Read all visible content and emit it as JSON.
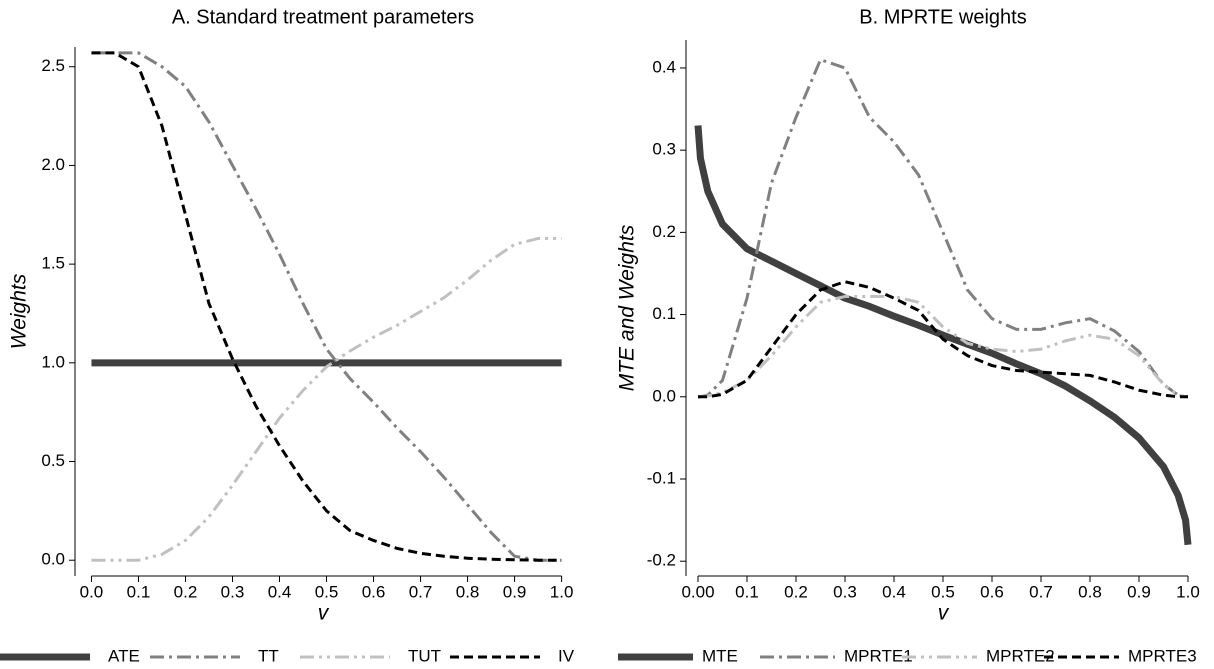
{
  "chart_data": [
    {
      "type": "line",
      "title": "A. Standard treatment parameters",
      "x_label": "v",
      "y_label": "Weights",
      "x": [
        0,
        0.05,
        0.1,
        0.15,
        0.2,
        0.25,
        0.3,
        0.35,
        0.4,
        0.45,
        0.5,
        0.55,
        0.6,
        0.65,
        0.7,
        0.75,
        0.8,
        0.85,
        0.9,
        0.95,
        1
      ],
      "series": [
        {
          "name": "ATE",
          "color": "#404040",
          "style": "solid",
          "values": [
            1,
            1,
            1,
            1,
            1,
            1,
            1,
            1,
            1,
            1,
            1,
            1,
            1,
            1,
            1,
            1,
            1,
            1,
            1,
            1,
            1
          ]
        },
        {
          "name": "TT",
          "color": "#808080",
          "style": "dash-dot",
          "values": [
            2.57,
            2.57,
            2.57,
            2.5,
            2.4,
            2.22,
            2.0,
            1.78,
            1.55,
            1.3,
            1.07,
            0.92,
            0.8,
            0.67,
            0.55,
            0.42,
            0.28,
            0.14,
            0.02,
            0,
            0
          ]
        },
        {
          "name": "TUT",
          "color": "#c0c0c0",
          "style": "dash-dot-dot",
          "values": [
            0,
            0,
            0,
            0.03,
            0.1,
            0.22,
            0.38,
            0.55,
            0.72,
            0.86,
            0.98,
            1.06,
            1.13,
            1.19,
            1.26,
            1.33,
            1.42,
            1.52,
            1.6,
            1.63,
            1.63
          ]
        },
        {
          "name": "IV",
          "color": "#000000",
          "style": "dash",
          "values": [
            2.57,
            2.57,
            2.5,
            2.2,
            1.75,
            1.3,
            1.02,
            0.78,
            0.58,
            0.4,
            0.25,
            0.15,
            0.1,
            0.06,
            0.035,
            0.02,
            0.01,
            0.005,
            0.002,
            0,
            0
          ]
        }
      ],
      "xlim": [
        -0.035,
        1.02
      ],
      "ylim": [
        -0.08,
        2.6
      ],
      "xticks": [
        {
          "value": 0,
          "label": "0.0"
        },
        0.1,
        0.2,
        0.3,
        0.4,
        0.5,
        0.6,
        0.7,
        0.8,
        0.9,
        {
          "value": 1,
          "label": "1.0"
        }
      ],
      "yticks": [
        {
          "value": 0,
          "label": "0.0"
        },
        0.5,
        {
          "value": 1,
          "label": "1.0"
        },
        1.5,
        {
          "value": 2,
          "label": "2.0"
        },
        2.5
      ]
    },
    {
      "type": "line",
      "title": "B. MPRTE weights",
      "x_label": "v",
      "y_label": "MTE and Weights",
      "x": [
        0,
        0.005,
        0.02,
        0.05,
        0.1,
        0.15,
        0.2,
        0.25,
        0.3,
        0.35,
        0.4,
        0.45,
        0.5,
        0.55,
        0.6,
        0.65,
        0.7,
        0.75,
        0.8,
        0.85,
        0.9,
        0.95,
        0.98,
        0.995,
        1
      ],
      "series": [
        {
          "name": "MTE",
          "color": "#404040",
          "style": "solid",
          "values": [
            0.33,
            0.29,
            0.25,
            0.21,
            0.18,
            0.165,
            0.15,
            0.135,
            0.12,
            0.11,
            0.098,
            0.087,
            0.075,
            0.064,
            0.053,
            0.04,
            0.028,
            0.013,
            -0.005,
            -0.025,
            -0.05,
            -0.085,
            -0.12,
            -0.15,
            -0.18
          ]
        },
        {
          "name": "MPRTE1",
          "color": "#808080",
          "style": "dash-dot",
          "values": [
            0,
            0,
            0.002,
            0.02,
            0.12,
            0.26,
            0.34,
            0.41,
            0.4,
            0.34,
            0.31,
            0.27,
            0.2,
            0.13,
            0.095,
            0.082,
            0.082,
            0.09,
            0.095,
            0.08,
            0.055,
            0.015,
            0.002,
            0,
            0
          ]
        },
        {
          "name": "MPRTE2",
          "color": "#c0c0c0",
          "style": "dash-dot-dot",
          "values": [
            0,
            0,
            0.001,
            0.005,
            0.02,
            0.05,
            0.085,
            0.115,
            0.122,
            0.122,
            0.122,
            0.115,
            0.085,
            0.065,
            0.058,
            0.055,
            0.058,
            0.068,
            0.075,
            0.07,
            0.05,
            0.015,
            0.002,
            0,
            0
          ]
        },
        {
          "name": "MPRTE3",
          "color": "#000000",
          "style": "dash",
          "values": [
            0,
            0,
            0,
            0.003,
            0.02,
            0.06,
            0.1,
            0.13,
            0.14,
            0.133,
            0.12,
            0.105,
            0.07,
            0.05,
            0.038,
            0.032,
            0.03,
            0.028,
            0.026,
            0.018,
            0.008,
            0.002,
            0,
            0,
            0
          ]
        }
      ],
      "xlim": [
        -0.0245,
        1.0245
      ],
      "ylim": [
        -0.218,
        0.434
      ],
      "xticks": [
        {
          "value": 0,
          "label": "0.00"
        },
        0.1,
        0.2,
        0.3,
        0.4,
        0.5,
        0.6,
        0.7,
        0.8,
        0.9,
        {
          "value": 1,
          "label": "1.0"
        }
      ],
      "yticks": [
        -0.2,
        -0.1,
        {
          "value": 0,
          "label": "0.0"
        },
        0.1,
        0.2,
        0.3,
        0.4
      ]
    }
  ]
}
